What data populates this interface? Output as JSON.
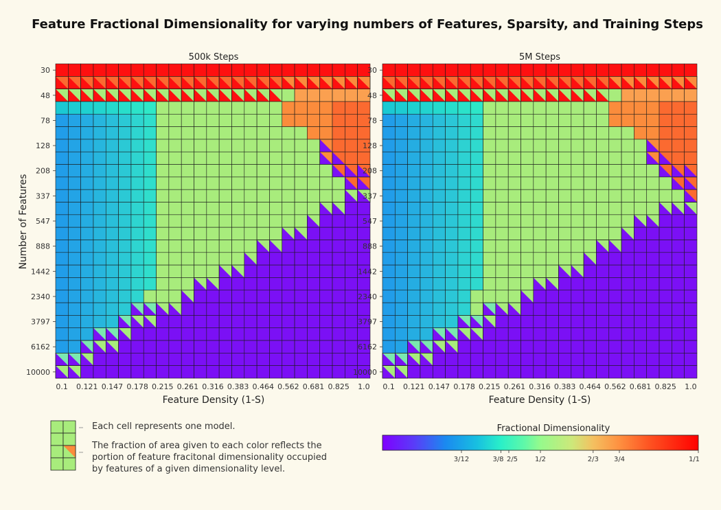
{
  "chart_data": {
    "type": "heatmap",
    "title": "Feature Fractional Dimensionality for varying numbers of Features, Sparsity, and Training Steps",
    "ylabel": "Number of Features",
    "xlabel": "Feature Density (1-S)",
    "x_tick_labels": [
      "0.1",
      "0.121",
      "0.147",
      "0.178",
      "0.215",
      "0.261",
      "0.316",
      "0.383",
      "0.464",
      "0.562",
      "0.681",
      "0.825",
      "1.0"
    ],
    "y_tick_labels": [
      "30",
      "48",
      "78",
      "128",
      "208",
      "337",
      "547",
      "888",
      "1442",
      "2340",
      "3797",
      "6162",
      "10000"
    ],
    "grid_rows": 25,
    "grid_cols": 25,
    "panels": [
      {
        "title": "500k Steps",
        "boundary_rows": [
          24,
          24,
          23,
          22,
          22,
          21,
          20,
          20,
          19,
          19,
          18,
          17,
          17,
          16,
          16,
          15,
          14,
          14,
          13,
          13,
          12,
          11,
          11,
          10,
          10
        ]
      },
      {
        "title": "5M Steps",
        "boundary_rows": [
          24,
          24,
          23,
          23,
          22,
          22,
          21,
          21,
          20,
          19,
          19,
          18,
          17,
          17,
          16,
          16,
          15,
          14,
          14,
          13,
          12,
          12,
          11,
          11,
          11
        ]
      }
    ],
    "colorbar": {
      "title": "Fractional Dimensionality",
      "range": [
        0,
        1
      ],
      "ticks": [
        {
          "value": 0.25,
          "label": "3/12"
        },
        {
          "value": 0.375,
          "label": "3/8"
        },
        {
          "value": 0.4,
          "label": "2/5"
        },
        {
          "value": 0.5,
          "label": "1/2"
        },
        {
          "value": 0.667,
          "label": "2/3"
        },
        {
          "value": 0.75,
          "label": "3/4"
        },
        {
          "value": 1.0,
          "label": "1/1"
        }
      ]
    }
  },
  "legend": {
    "line1": "Each cell represents one model.",
    "line2": "The fraction of area given to each color reflects the",
    "line3": "portion of feature fracitonal dimensionality occupied",
    "line4": "by features of a given dimensionality level."
  },
  "colors": {
    "background": "#fcf9ec",
    "purple": "#7b10f5",
    "green": "#a8ec7c",
    "orange": "#fb8c3c",
    "red": "#fe1010"
  }
}
